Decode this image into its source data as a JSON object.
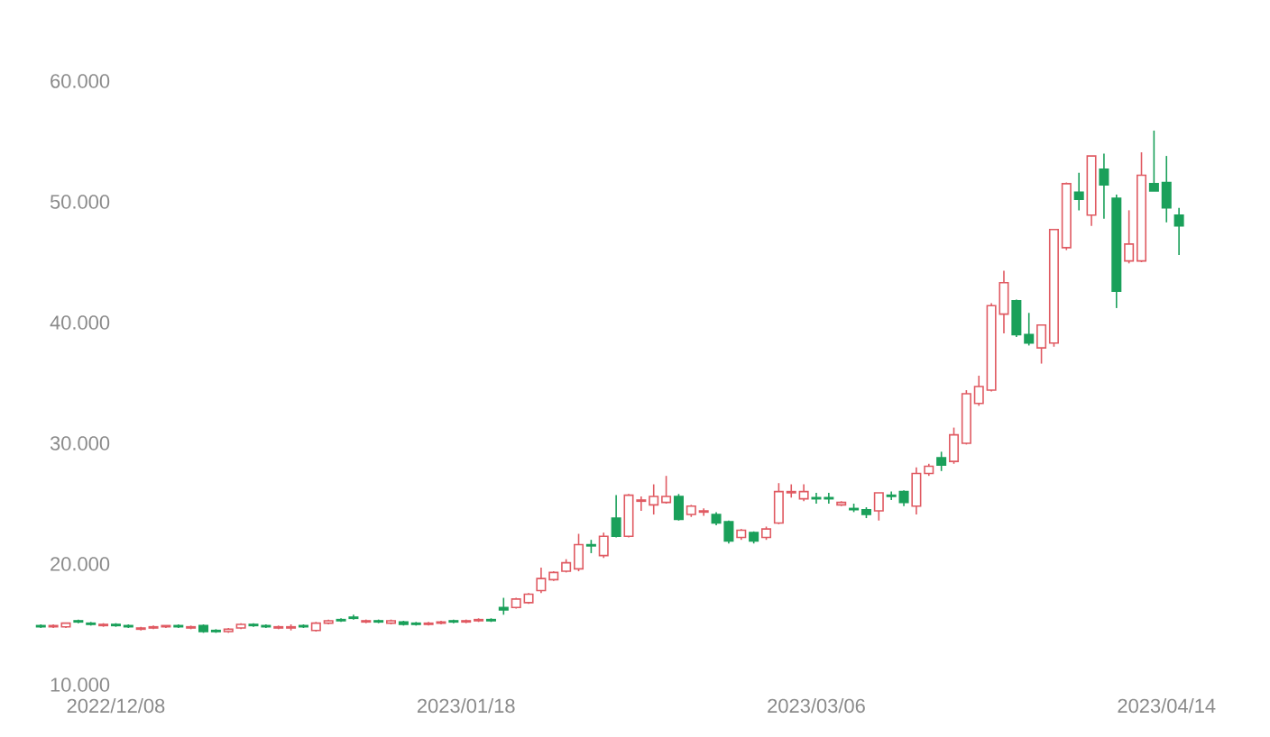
{
  "chart_data": {
    "type": "candlestick",
    "categories": [
      null,
      null,
      null,
      null,
      null,
      null,
      "2022/12/08",
      null,
      null,
      null,
      null,
      null,
      null,
      null,
      null,
      null,
      null,
      null,
      null,
      null,
      null,
      null,
      null,
      null,
      null,
      null,
      null,
      null,
      null,
      null,
      null,
      null,
      null,
      null,
      "2023/01/18",
      null,
      null,
      null,
      null,
      null,
      null,
      null,
      null,
      null,
      null,
      null,
      null,
      null,
      null,
      null,
      null,
      null,
      null,
      null,
      null,
      null,
      null,
      null,
      null,
      null,
      null,
      null,
      "2023/03/06",
      null,
      null,
      null,
      null,
      null,
      null,
      null,
      null,
      null,
      null,
      null,
      null,
      null,
      null,
      null,
      null,
      null,
      null,
      null,
      null,
      null,
      null,
      null,
      null,
      null,
      null,
      null,
      "2023/04/14",
      null
    ],
    "ohlc": [
      [
        14.9,
        15.0,
        14.7,
        14.8
      ],
      [
        14.8,
        15.0,
        14.7,
        14.9
      ],
      [
        14.8,
        15.1,
        14.7,
        15.1
      ],
      [
        15.3,
        15.4,
        15.1,
        15.2
      ],
      [
        15.1,
        15.2,
        14.9,
        15.0
      ],
      [
        14.9,
        15.1,
        14.8,
        15.0
      ],
      [
        15.0,
        15.1,
        14.8,
        14.9
      ],
      [
        14.9,
        15.0,
        14.7,
        14.8
      ],
      [
        14.6,
        14.8,
        14.5,
        14.7
      ],
      [
        14.7,
        14.9,
        14.6,
        14.8
      ],
      [
        14.8,
        14.9,
        14.7,
        14.9
      ],
      [
        14.9,
        15.0,
        14.7,
        14.8
      ],
      [
        14.7,
        14.9,
        14.6,
        14.8
      ],
      [
        14.9,
        15.0,
        14.3,
        14.4
      ],
      [
        14.5,
        14.6,
        14.3,
        14.4
      ],
      [
        14.4,
        14.7,
        14.3,
        14.6
      ],
      [
        14.7,
        15.1,
        14.6,
        15.0
      ],
      [
        15.0,
        15.1,
        14.8,
        14.9
      ],
      [
        14.9,
        15.0,
        14.7,
        14.8
      ],
      [
        14.7,
        14.9,
        14.6,
        14.8
      ],
      [
        14.7,
        15.0,
        14.5,
        14.8
      ],
      [
        14.9,
        15.0,
        14.7,
        14.8
      ],
      [
        14.5,
        15.2,
        14.4,
        15.1
      ],
      [
        15.1,
        15.4,
        15.0,
        15.3
      ],
      [
        15.4,
        15.5,
        15.2,
        15.3
      ],
      [
        15.6,
        15.8,
        15.4,
        15.5
      ],
      [
        15.2,
        15.4,
        15.1,
        15.3
      ],
      [
        15.3,
        15.4,
        15.1,
        15.2
      ],
      [
        15.1,
        15.4,
        15.0,
        15.3
      ],
      [
        15.2,
        15.3,
        14.9,
        15.0
      ],
      [
        15.1,
        15.2,
        14.9,
        15.0
      ],
      [
        15.0,
        15.2,
        14.9,
        15.1
      ],
      [
        15.1,
        15.3,
        15.0,
        15.2
      ],
      [
        15.3,
        15.4,
        15.1,
        15.2
      ],
      [
        15.2,
        15.4,
        15.1,
        15.3
      ],
      [
        15.3,
        15.5,
        15.2,
        15.4
      ],
      [
        15.4,
        15.5,
        15.2,
        15.3
      ],
      [
        16.4,
        17.2,
        15.8,
        16.2
      ],
      [
        16.4,
        17.2,
        16.3,
        17.1
      ],
      [
        16.8,
        17.6,
        16.7,
        17.5
      ],
      [
        17.8,
        19.7,
        17.6,
        18.8
      ],
      [
        18.7,
        19.4,
        18.6,
        19.3
      ],
      [
        19.4,
        20.4,
        19.3,
        20.1
      ],
      [
        19.6,
        22.5,
        19.4,
        21.6
      ],
      [
        21.6,
        22.0,
        20.9,
        21.5
      ],
      [
        20.7,
        22.6,
        20.5,
        22.3
      ],
      [
        23.8,
        25.7,
        22.2,
        22.3
      ],
      [
        22.3,
        25.8,
        22.2,
        25.7
      ],
      [
        25.2,
        25.6,
        24.4,
        25.3
      ],
      [
        24.9,
        26.6,
        24.1,
        25.6
      ],
      [
        25.1,
        27.3,
        25.0,
        25.6
      ],
      [
        25.6,
        25.8,
        23.6,
        23.7
      ],
      [
        24.1,
        24.9,
        23.9,
        24.8
      ],
      [
        24.3,
        24.6,
        24.0,
        24.4
      ],
      [
        24.1,
        24.3,
        23.2,
        23.4
      ],
      [
        23.5,
        23.6,
        21.7,
        21.9
      ],
      [
        22.2,
        22.9,
        22.0,
        22.8
      ],
      [
        22.6,
        22.7,
        21.7,
        21.9
      ],
      [
        22.2,
        23.1,
        22.0,
        22.9
      ],
      [
        23.4,
        26.7,
        23.3,
        26.0
      ],
      [
        25.9,
        26.6,
        25.5,
        26.0
      ],
      [
        25.4,
        26.6,
        25.2,
        26.0
      ],
      [
        25.5,
        25.9,
        25.0,
        25.4
      ],
      [
        25.5,
        25.9,
        25.0,
        25.4
      ],
      [
        24.9,
        25.2,
        24.8,
        25.1
      ],
      [
        24.6,
        25.0,
        24.3,
        24.5
      ],
      [
        24.5,
        24.7,
        23.8,
        24.1
      ],
      [
        24.4,
        25.9,
        23.6,
        25.9
      ],
      [
        25.7,
        26.0,
        25.3,
        25.6
      ],
      [
        26.0,
        26.1,
        24.8,
        25.1
      ],
      [
        24.8,
        28.0,
        24.1,
        27.5
      ],
      [
        27.5,
        28.3,
        27.3,
        28.1
      ],
      [
        28.8,
        29.3,
        27.7,
        28.2
      ],
      [
        28.5,
        31.3,
        28.3,
        30.7
      ],
      [
        30.0,
        34.4,
        29.9,
        34.1
      ],
      [
        33.3,
        35.6,
        33.1,
        34.7
      ],
      [
        34.4,
        41.6,
        34.3,
        41.4
      ],
      [
        40.7,
        44.3,
        39.1,
        43.3
      ],
      [
        41.8,
        41.9,
        38.8,
        39.0
      ],
      [
        39.0,
        40.8,
        38.1,
        38.3
      ],
      [
        37.9,
        39.8,
        36.6,
        39.8
      ],
      [
        38.3,
        47.7,
        38.0,
        47.7
      ],
      [
        46.2,
        51.6,
        46.0,
        51.5
      ],
      [
        50.8,
        52.4,
        49.3,
        50.2
      ],
      [
        48.9,
        53.8,
        48.0,
        53.8
      ],
      [
        52.7,
        54.0,
        48.6,
        51.4
      ],
      [
        50.3,
        50.6,
        41.2,
        42.6
      ],
      [
        45.1,
        49.3,
        44.9,
        46.5
      ],
      [
        45.1,
        54.1,
        45.0,
        52.2
      ],
      [
        51.5,
        55.9,
        50.9,
        50.9
      ],
      [
        51.6,
        53.8,
        48.3,
        49.5
      ],
      [
        48.9,
        49.5,
        45.6,
        48.0
      ]
    ],
    "colors": [
      "#1aa05a",
      "#e05a62",
      "#e05a62",
      "#1aa05a",
      "#1aa05a",
      "#e05a62",
      "#1aa05a",
      "#1aa05a",
      "#e05a62",
      "#e05a62",
      "#e05a62",
      "#1aa05a",
      "#e05a62",
      "#1aa05a",
      "#1aa05a",
      "#e05a62",
      "#e05a62",
      "#1aa05a",
      "#1aa05a",
      "#e05a62",
      "#e05a62",
      "#1aa05a",
      "#e05a62",
      "#e05a62",
      "#1aa05a",
      "#1aa05a",
      "#e05a62",
      "#1aa05a",
      "#e05a62",
      "#1aa05a",
      "#1aa05a",
      "#e05a62",
      "#e05a62",
      "#1aa05a",
      "#e05a62",
      "#e05a62",
      "#1aa05a",
      "#1aa05a",
      "#e05a62",
      "#e05a62",
      "#e05a62",
      "#e05a62",
      "#e05a62",
      "#e05a62",
      "#1aa05a",
      "#e05a62",
      "#1aa05a",
      "#e05a62",
      "#e05a62",
      "#e05a62",
      "#e05a62",
      "#1aa05a",
      "#e05a62",
      "#e05a62",
      "#1aa05a",
      "#1aa05a",
      "#e05a62",
      "#1aa05a",
      "#e05a62",
      "#e05a62",
      "#e05a62",
      "#e05a62",
      "#1aa05a",
      "#1aa05a",
      "#e05a62",
      "#1aa05a",
      "#1aa05a",
      "#e05a62",
      "#1aa05a",
      "#1aa05a",
      "#e05a62",
      "#e05a62",
      "#1aa05a",
      "#e05a62",
      "#e05a62",
      "#e05a62",
      "#e05a62",
      "#e05a62",
      "#1aa05a",
      "#1aa05a",
      "#e05a62",
      "#e05a62",
      "#e05a62",
      "#1aa05a",
      "#e05a62",
      "#1aa05a",
      "#1aa05a",
      "#e05a62",
      "#e05a62",
      "#1aa05a",
      "#1aa05a",
      "#1aa05a"
    ],
    "ylim": [
      10,
      60
    ],
    "yticks": [
      {
        "value": 10,
        "label": "10.000"
      },
      {
        "value": 20,
        "label": "20.000"
      },
      {
        "value": 30,
        "label": "30.000"
      },
      {
        "value": 40,
        "label": "40.000"
      },
      {
        "value": 50,
        "label": "50.000"
      },
      {
        "value": 60,
        "label": "60.000"
      }
    ]
  }
}
